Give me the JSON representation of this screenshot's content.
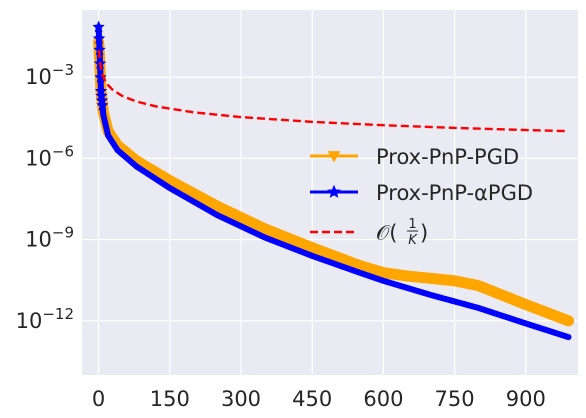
{
  "chart_data": {
    "type": "line",
    "title": "",
    "xlabel": "",
    "ylabel": "",
    "y_scale": "log",
    "xlim": [
      -35,
      1010
    ],
    "ylim": [
      1e-14,
      0.3
    ],
    "grid": true,
    "x_ticks": [
      0,
      150,
      300,
      450,
      600,
      750,
      900
    ],
    "x_tick_labels": [
      "0",
      "150",
      "300",
      "450",
      "600",
      "750",
      "900"
    ],
    "y_ticks": [
      0.001,
      1e-06,
      1e-09,
      1e-12
    ],
    "y_tick_labels": [
      {
        "base": "10",
        "exp": "−3"
      },
      {
        "base": "10",
        "exp": "−6"
      },
      {
        "base": "10",
        "exp": "−9"
      },
      {
        "base": "10",
        "exp": "−12"
      }
    ],
    "legend_position": "right",
    "series": [
      {
        "name": "Prox-PnP-PGD",
        "color": "#ffa500",
        "style": "solid-thick",
        "marker": "triangle-down",
        "x": [
          0,
          2,
          5,
          10,
          20,
          40,
          80,
          150,
          250,
          350,
          450,
          550,
          600,
          650,
          700,
          750,
          800,
          900,
          990
        ],
        "y": [
          0.02,
          0.005,
          0.0003,
          5e-05,
          1e-05,
          3e-06,
          8e-07,
          1.5e-07,
          1.7e-08,
          2.5e-09,
          5e-10,
          1.1e-10,
          6e-11,
          4.5e-11,
          3.7e-11,
          3e-11,
          2e-11,
          4e-12,
          1e-12
        ]
      },
      {
        "name": "Prox-PnP-αPGD",
        "color": "#0000ff",
        "style": "solid",
        "marker": "star",
        "x": [
          0,
          2,
          5,
          10,
          20,
          40,
          80,
          150,
          250,
          350,
          450,
          550,
          600,
          700,
          800,
          900,
          990
        ],
        "y": [
          0.07,
          0.01,
          0.0003,
          4e-05,
          7e-06,
          2e-06,
          5e-07,
          8e-08,
          8e-09,
          1.2e-09,
          2.5e-10,
          6e-11,
          3e-11,
          9e-12,
          3e-12,
          8e-13,
          2.5e-13
        ]
      },
      {
        "name": "𝒪(1/K)",
        "legend_label": {
          "prefix": "𝒪(",
          "num": "1",
          "den": "K",
          "suffix": ")"
        },
        "color": "#ff0000",
        "style": "dashed",
        "marker": "none",
        "x": [
          1,
          2,
          3,
          5,
          8,
          12,
          20,
          30,
          50,
          80,
          120,
          200,
          300,
          450,
          600,
          750,
          900,
          990
        ],
        "y": [
          0.01,
          0.005,
          0.00333,
          0.002,
          0.00125,
          0.000833,
          0.0005,
          0.000333,
          0.0002,
          0.000125,
          8.33e-05,
          5e-05,
          3.33e-05,
          2.22e-05,
          1.67e-05,
          1.33e-05,
          1.11e-05,
          1.01e-05
        ]
      }
    ]
  }
}
